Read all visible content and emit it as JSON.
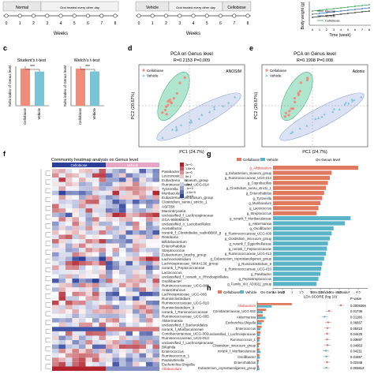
{
  "timeline": {
    "left": {
      "box_normal": "Normal",
      "box_note": "Oral treated every other day",
      "weeks": [
        "0",
        "1",
        "2",
        "3",
        "4",
        "5",
        "6",
        "7",
        "8"
      ],
      "axis_label": "Weeks"
    },
    "right": {
      "box_vehicle": "Vehicle",
      "box_note": "Oral treated every other day",
      "box_cellobiose": "Cellobiose",
      "weeks": [
        "0",
        "1",
        "2",
        "3",
        "4",
        "5",
        "6",
        "7",
        "8"
      ],
      "axis_label": "Weeks"
    }
  },
  "body_weight": {
    "ylabel": "Body weight (g)",
    "xlabel": "Time (week)",
    "xticks": [
      "0",
      "1",
      "2",
      "3",
      "4",
      "5",
      "6",
      "7",
      "8"
    ],
    "legend": [
      "Normal",
      "Vehicle",
      "Cellobiose"
    ]
  },
  "panels": {
    "c": "c",
    "d": "d",
    "e": "e",
    "f": "f",
    "g": "g",
    "h": "h"
  },
  "colors": {
    "cellobiose": "#f08d7a",
    "vehicle": "#7bc4d8",
    "ellipse_cello": "#6fcfa8",
    "ellipse_vehicle": "#b6c6e8",
    "lda_cello": "#e07a5f",
    "lda_vehicle": "#5bb3c7",
    "heat_high": "#b2182b",
    "heat_low": "#2c3e9a",
    "normal": "#333333",
    "bw_vehicle": "#3b6fb6",
    "bw_cellobiose": "#3aa35a"
  },
  "bar_tests": [
    {
      "title": "Student's t-test",
      "ylabel": "Sobs index of Genus level",
      "sig": "***",
      "categories": [
        "Cellobiose",
        "Vehicle"
      ],
      "values": [
        245,
        225
      ]
    },
    {
      "title": "Welch's t-test",
      "ylabel": "Sobs index of Genus level",
      "sig": "***",
      "categories": [
        "Cellobiose",
        "Vehicle"
      ],
      "values": [
        245,
        226
      ]
    }
  ],
  "pca": [
    {
      "title": "PCA on Genus level",
      "stat": "R=0.2153  P=0.009",
      "method": "ANOSIM",
      "xlabel": "PC1 (24.7%)",
      "ylabel": "PC2 (20.67%)",
      "legend": [
        "Cellobiose",
        "Vehicle"
      ]
    },
    {
      "title": "PCA on Genus level",
      "stat": "R=0.1908  P=0.008",
      "method": "Adonis",
      "xlabel": "PC1 (24.7%)",
      "ylabel": "PC2 (20.67%)",
      "legend": [
        "Cellobiose",
        "Vehicle"
      ]
    }
  ],
  "heatmap": {
    "title": "Community heatmap analysis on Genus level",
    "groups": [
      "Cellobiose",
      "Vehicle"
    ],
    "scale": [
      "2e+0",
      "1.5e+0",
      "1e+0",
      "5e-1",
      "0",
      "-5e-1",
      "-1e+0",
      "-1.5e+0",
      "-2e+0"
    ],
    "genera": [
      "Parabacter",
      "Leuconostoc",
      "Eubacterium_siraeum_group",
      "Ruminococcaceae_UCG-014",
      "Tyzzerella",
      "Muribaculum",
      "Eubacterium_ventriosum_group",
      "Clostridium_sensu_stricto_1",
      "ASF356",
      "Marvinbryantia",
      "unclassified_f_Lachnospiraceae",
      "GCA-900066575",
      "unclassified_o_Lactobacillales",
      "Acetatifactor",
      "norank_f_Clostridiales_vadinBB60_g",
      "Roseburia",
      "Bifidobacterium",
      "Enterorhabdus",
      "Streptococcus",
      "Eubacterium_brachy_group",
      "Lachnoclostridium",
      "Lachnospiraceae_NK4A136_group",
      "norank_f_Peptococcaceae",
      "Lactococcus",
      "unclassified_f_norank_o_Rhodospirillales",
      "Oscillibacter",
      "Ruminococcaceae_UCG-009",
      "Anaerotruncus",
      "Lachnospiraceae_UCG-006",
      "Ruminiclostridium",
      "Ruminococcaceae_UCG-010",
      "Ruminiclostridium_9",
      "norank_f_Ruminococcaceae",
      "Ruminococcaceae_UCG-005",
      "Akkermansia",
      "unclassified_f_Bacteroidales",
      "norank_f_Muribaculaceae",
      "Coriobacteriaceae_UCG-002",
      "Ruminococcaceae_UCG-013",
      "unclassified_f_Lachnospiraceae",
      "Bilophila",
      "Enterococcus",
      "Ruminococcus_1",
      "Parasutterella",
      "Escherichia-Shigella",
      "Allobaculum"
    ],
    "highlight": "Allobaculum"
  },
  "lda": {
    "title": "On Genus level",
    "legend": [
      "Cellobiose",
      "Vehicle"
    ],
    "xlabel": "LDA SCORE (log 10)",
    "xticks": [
      "0",
      "0.5",
      "1",
      "1.5",
      "2",
      "2.5",
      "3",
      "3.5",
      "4",
      "4.5"
    ],
    "labels": [
      "g_Allobaculum",
      "g_Eubacterium_siraeum_group",
      "g_Ruminococcaceae_UCG-014",
      "g_Coprobacillus",
      "g_Clostridium_sensu_stricto_1",
      "g_Enterorhabdus",
      "g_Tyzzerella",
      "g_Muribaculum",
      "g_Lactococcus",
      "g_Streptococcus",
      "g_norank_f_Muribaculaceae",
      "g_Akkermansia",
      "g_Oscillibacter",
      "g_Ruminococcaceae_UCG-009",
      "g_Clostridium_innocuum_group",
      "g_norank_f_Eggerthellaceae",
      "g_norank_f_Peptococcaceae",
      "g_Ruminococcaceae_UCG-013",
      "g_Eubacterium_coprostanoligenes_group",
      "g_Ruminiclostridium_9",
      "g_Ruminococcaceae_UCG-010",
      "g_Parvibacter",
      "g_Peptostreptococcus",
      "g_Family_XIII_AD3011_group"
    ],
    "values": [
      4.5,
      3.1,
      3.0,
      2.9,
      2.8,
      2.7,
      2.6,
      2.5,
      2.4,
      2.3,
      4.1,
      3.8,
      3.2,
      3.1,
      3.0,
      2.9,
      2.85,
      2.8,
      2.7,
      2.6,
      2.55,
      2.5,
      2.4,
      2.3
    ],
    "groups": [
      "Cellobiose",
      "Cellobiose",
      "Cellobiose",
      "Cellobiose",
      "Cellobiose",
      "Cellobiose",
      "Cellobiose",
      "Cellobiose",
      "Cellobiose",
      "Cellobiose",
      "Vehicle",
      "Vehicle",
      "Vehicle",
      "Vehicle",
      "Vehicle",
      "Vehicle",
      "Vehicle",
      "Vehicle",
      "Vehicle",
      "Vehicle",
      "Vehicle",
      "Vehicle",
      "Vehicle",
      "Vehicle"
    ]
  },
  "diff": {
    "title": "On Genus level",
    "legend": [
      "Cellobiose",
      "Vehicle"
    ],
    "ci_label": "95% confidence intervals",
    "pval_label": "P-value",
    "labels": [
      "Allobaculum",
      "Coriobacteriaceae_UCG-002",
      "Akkermansia",
      "Escherichia-Shigella",
      "Enterococcus",
      "unclassified_f_Lachnospiraceae",
      "Ruminococcus_1",
      "Clostridium_innocuum_group",
      "norank_f_Muribaculaceae",
      "Oscillibacter",
      "Enterorhabdus",
      "Eubacterium_coprostanoligenes_group"
    ],
    "cello": [
      62,
      16,
      10,
      12,
      8,
      6,
      5,
      5,
      4,
      4,
      3,
      3
    ],
    "vehicle": [
      26,
      10,
      15,
      8,
      6,
      5,
      4,
      3,
      6,
      5,
      2,
      4
    ],
    "pvalues": [
      "0.0008366",
      "0.01736",
      "0.01188",
      "0.06667",
      "0.05423",
      "0.04425",
      "0.03697",
      "0.04963",
      "0.04211",
      "0.01957",
      "0.02348",
      "0.003812"
    ]
  }
}
